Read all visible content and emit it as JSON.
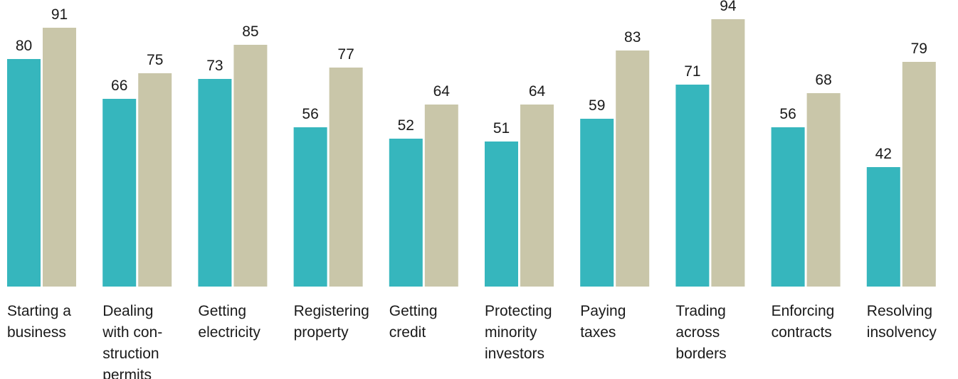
{
  "chart_data": {
    "type": "bar",
    "categories": [
      [
        "Starting a",
        "business"
      ],
      [
        "Dealing",
        "with con-",
        "struction",
        "permits"
      ],
      [
        "Getting",
        "electricity"
      ],
      [
        "Registering",
        "property"
      ],
      [
        "Getting",
        "credit"
      ],
      [
        "Protecting",
        "minority",
        "investors"
      ],
      [
        "Paying",
        "taxes"
      ],
      [
        "Trading",
        "across",
        "borders"
      ],
      [
        "Enforcing",
        "contracts"
      ],
      [
        "Resolving",
        "insolvency"
      ]
    ],
    "series": [
      {
        "values": [
          80,
          66,
          73,
          56,
          52,
          51,
          59,
          71,
          56,
          42
        ],
        "color": "#36b6bd"
      },
      {
        "values": [
          91,
          75,
          85,
          77,
          64,
          64,
          83,
          94,
          68,
          79
        ],
        "color": "#c9c6a9"
      }
    ],
    "title": "",
    "xlabel": "",
    "ylabel": "",
    "ylim": [
      0,
      100
    ],
    "grid": false,
    "legend": "none",
    "data_labels": true
  }
}
